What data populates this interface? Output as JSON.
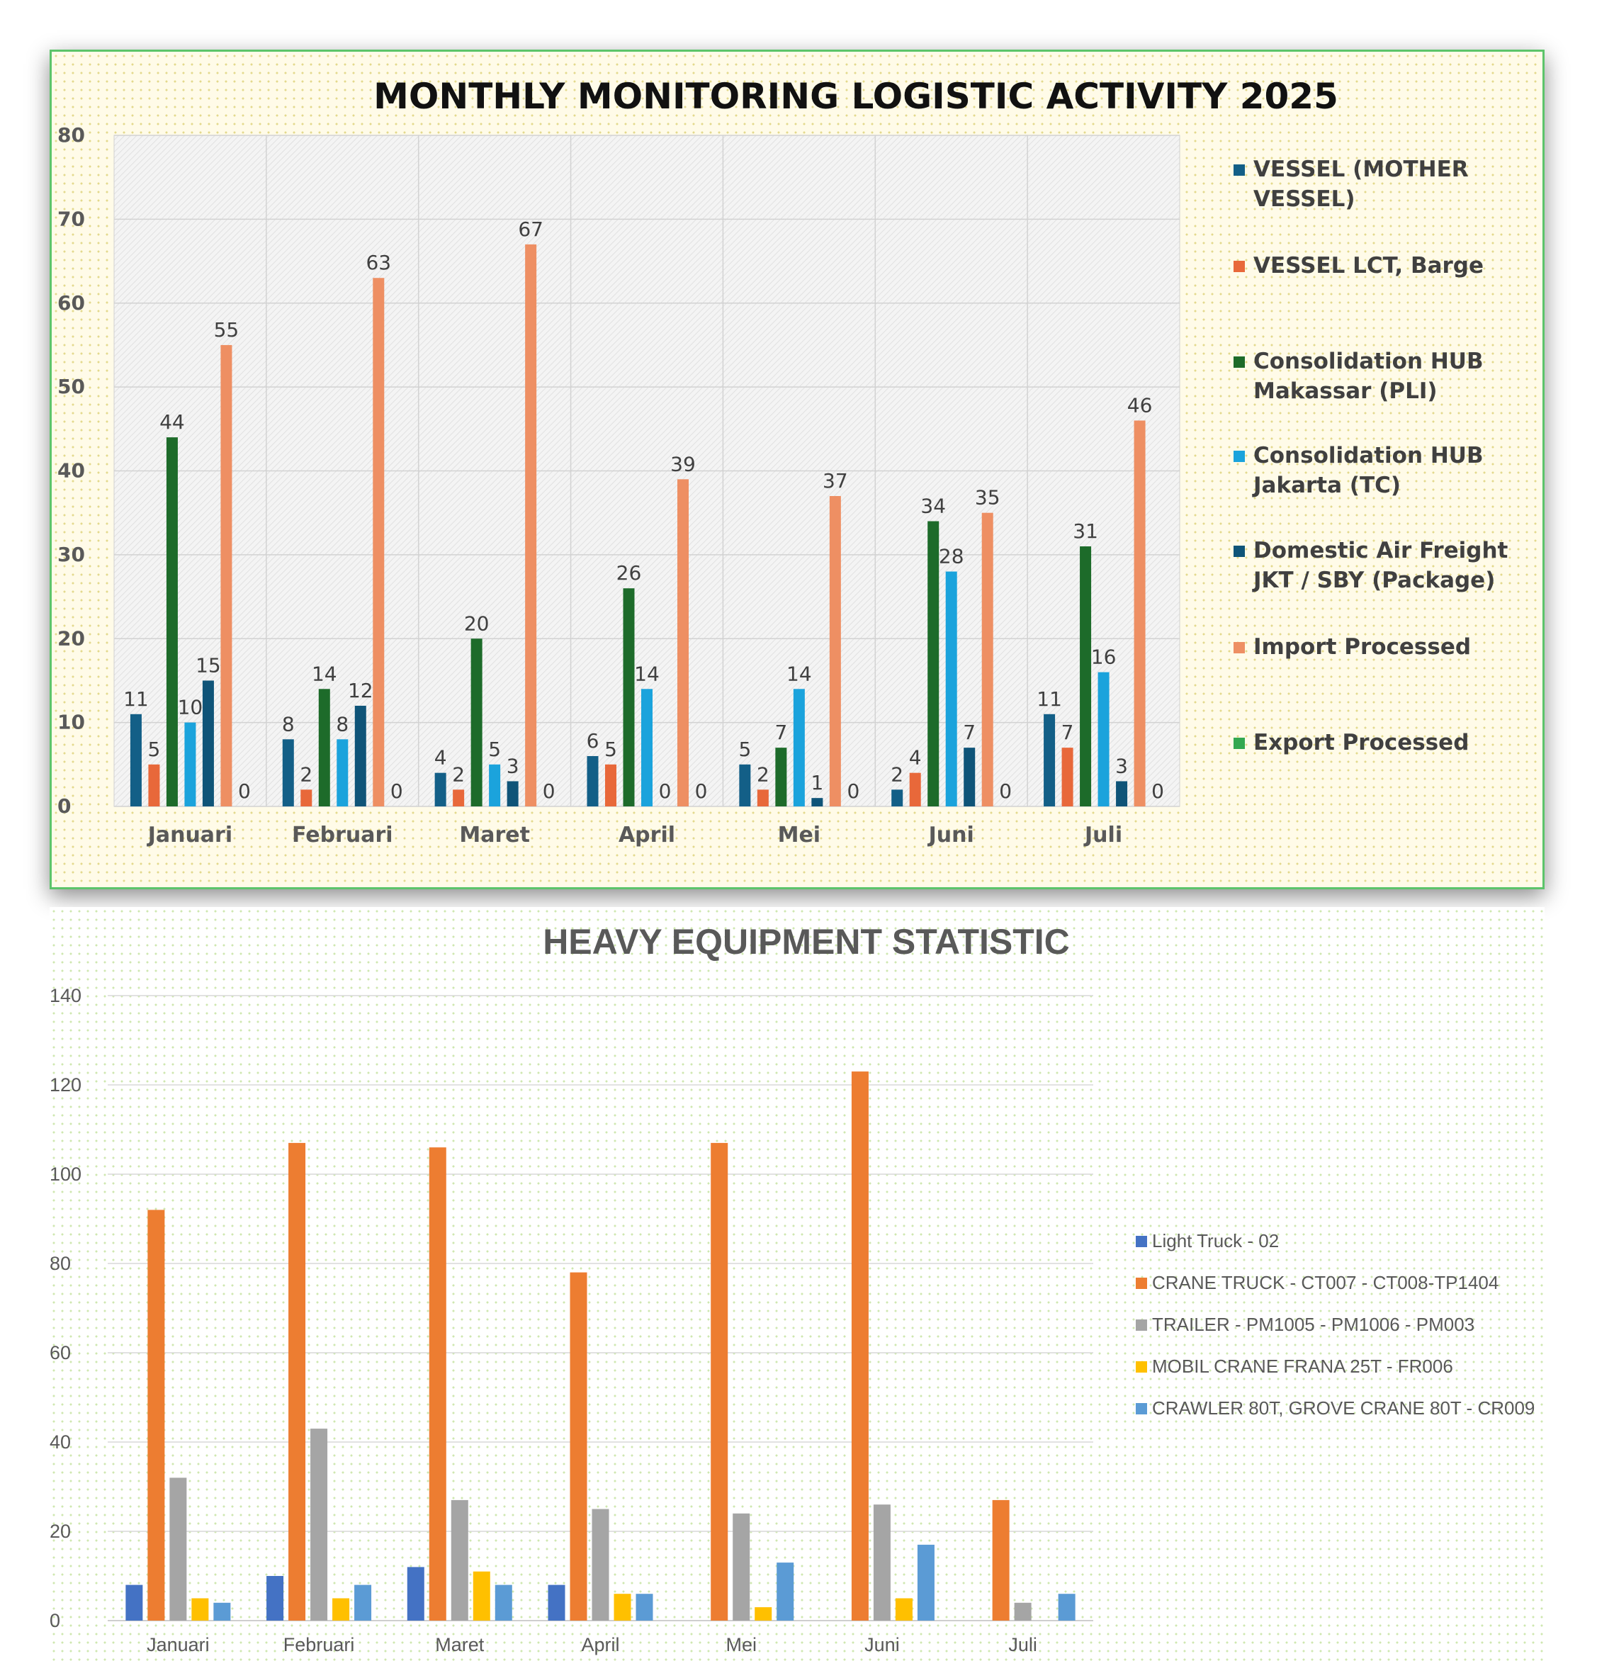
{
  "chart_data": [
    {
      "type": "bar",
      "title": "MONTHLY MONITORING LOGISTIC ACTIVITY 2025",
      "categories": [
        "Januari",
        "Februari",
        "Maret",
        "April",
        "Mei",
        "Juni",
        "Juli"
      ],
      "ylim": [
        0,
        80
      ],
      "yticks": [
        0,
        10,
        20,
        30,
        40,
        50,
        60,
        70,
        80
      ],
      "grid": true,
      "legend_position": "right",
      "series": [
        {
          "name": "VESSEL (MOTHER VESSEL)",
          "legend_lines": [
            "VESSEL (MOTHER",
            "VESSEL)"
          ],
          "color": "#135f87",
          "values": [
            11,
            8,
            4,
            6,
            5,
            2,
            11
          ],
          "labels": [
            "11",
            "8",
            "4",
            "6",
            "5",
            "2",
            "11"
          ]
        },
        {
          "name": "VESSEL LCT, Barge",
          "legend_lines": [
            "VESSEL LCT, Barge"
          ],
          "color": "#e8683a",
          "values": [
            5,
            2,
            2,
            5,
            2,
            4,
            7
          ],
          "labels": [
            "5",
            "2",
            "2",
            "5",
            "2",
            "4",
            "7"
          ]
        },
        {
          "name": "Consolidation HUB Makassar (PLI)",
          "legend_lines": [
            "Consolidation HUB",
            "Makassar (PLI)"
          ],
          "color": "#1d6b2a",
          "values": [
            44,
            14,
            20,
            26,
            7,
            34,
            31
          ],
          "labels": [
            "44",
            "14",
            "20",
            "26",
            "7",
            "34",
            "31"
          ]
        },
        {
          "name": "Consolidation HUB Jakarta (TC)",
          "legend_lines": [
            "Consolidation HUB",
            "Jakarta (TC)"
          ],
          "color": "#1ba3dc",
          "values": [
            10,
            8,
            5,
            14,
            14,
            28,
            16
          ],
          "labels": [
            "10",
            "8",
            "5",
            "14",
            "14",
            "28",
            "16"
          ]
        },
        {
          "name": "Domestic Air Freight JKT / SBY (Package)",
          "legend_lines": [
            "Domestic Air Freight",
            "JKT / SBY (Package)"
          ],
          "color": "#0f5478",
          "values": [
            15,
            12,
            3,
            0,
            1,
            7,
            3
          ],
          "labels": [
            "15",
            "12",
            "3",
            "0",
            "1",
            "7",
            "3"
          ]
        },
        {
          "name": "Import Processed",
          "legend_lines": [
            "Import Processed"
          ],
          "color": "#ee8f63",
          "values": [
            55,
            63,
            67,
            39,
            37,
            35,
            46
          ],
          "labels": [
            "55",
            "63",
            "67",
            "39",
            "37",
            "35",
            "46"
          ]
        },
        {
          "name": "Export Processed",
          "legend_lines": [
            "Export Processed"
          ],
          "color": "#33a850",
          "values": [
            0,
            0,
            0,
            0,
            0,
            0,
            0
          ],
          "labels": [
            "0",
            "0",
            "0",
            "0",
            "0",
            "0",
            "0"
          ]
        }
      ]
    },
    {
      "type": "bar",
      "title": "HEAVY EQUIPMENT STATISTIC",
      "categories": [
        "Januari",
        "Februari",
        "Maret",
        "April",
        "Mei",
        "Juni",
        "Juli"
      ],
      "ylim": [
        0,
        140
      ],
      "yticks": [
        0,
        20,
        40,
        60,
        80,
        100,
        120,
        140
      ],
      "grid": true,
      "legend_position": "right",
      "series": [
        {
          "name": "Light Truck - 02",
          "color": "#4472c4",
          "values": [
            8,
            10,
            12,
            8,
            0,
            0,
            0
          ]
        },
        {
          "name": "CRANE TRUCK - CT007 - CT008-TP1404",
          "color": "#ed7d31",
          "values": [
            92,
            107,
            106,
            78,
            107,
            123,
            27
          ]
        },
        {
          "name": "TRAILER - PM1005 - PM1006 - PM003",
          "color": "#a5a5a5",
          "values": [
            32,
            43,
            27,
            25,
            24,
            26,
            4
          ]
        },
        {
          "name": "MOBIL CRANE FRANA 25T - FR006",
          "color": "#ffc000",
          "values": [
            5,
            5,
            11,
            6,
            3,
            5,
            0
          ]
        },
        {
          "name": "CRAWLER 80T, GROVE CRANE 80T - CR009",
          "color": "#5b9bd5",
          "values": [
            4,
            8,
            8,
            6,
            13,
            17,
            6
          ]
        }
      ]
    }
  ]
}
